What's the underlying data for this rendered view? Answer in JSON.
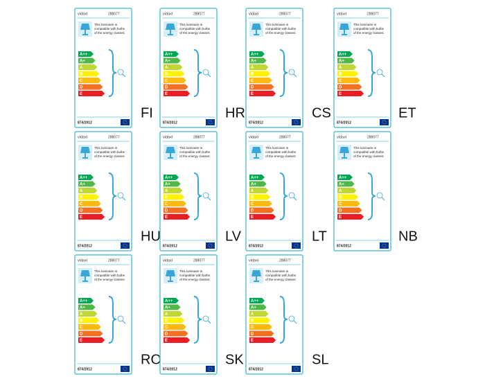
{
  "label": {
    "brand": "vidaxl",
    "model": "288077",
    "text": [
      "This luminaire is",
      "compatible with bulbs",
      "of the energy classes:"
    ],
    "classes": [
      "A++",
      "A+",
      "A",
      "B",
      "C",
      "D",
      "E"
    ],
    "regulation": "874/2012"
  },
  "languages": [
    "FI",
    "HR",
    "CS",
    "ET",
    "HU",
    "LV",
    "LT",
    "NB",
    "RO",
    "SK",
    "SL"
  ]
}
